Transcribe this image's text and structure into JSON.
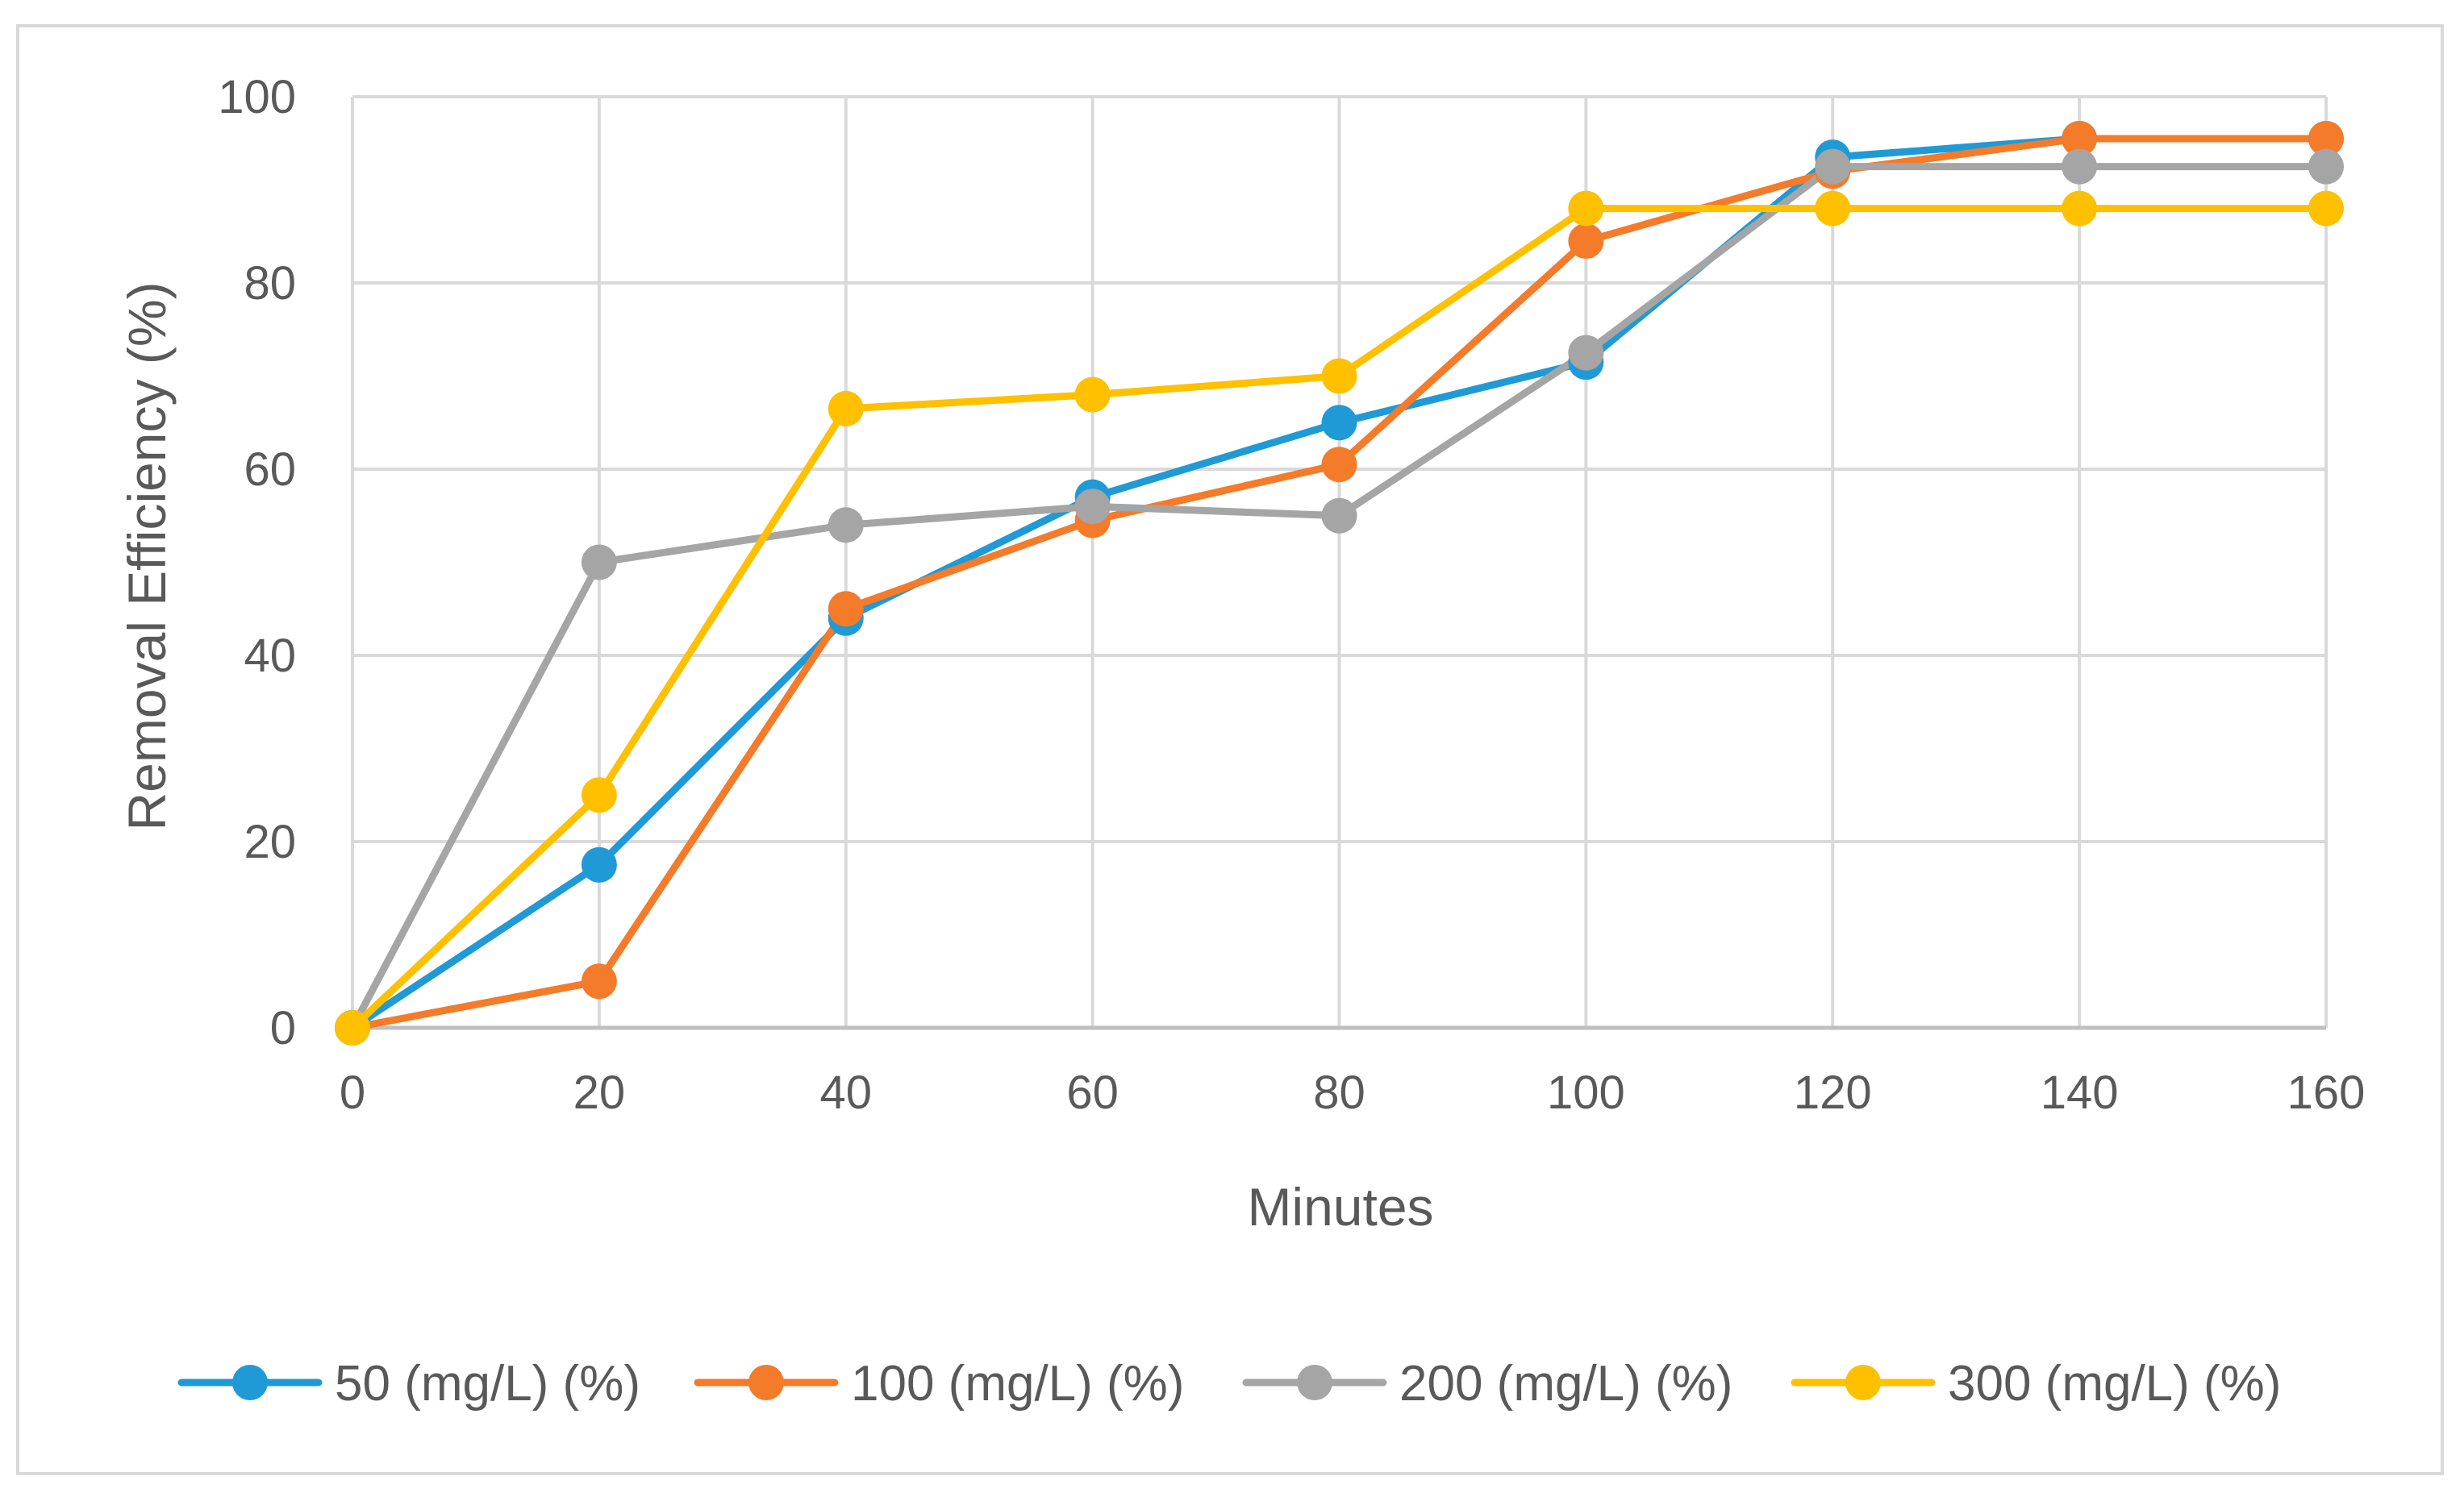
{
  "chart_data": {
    "type": "line",
    "title": "",
    "xlabel": "Minutes",
    "ylabel": "Removal Efficiency (%)",
    "x": [
      0,
      20,
      40,
      60,
      80,
      100,
      120,
      140,
      160
    ],
    "xlim": [
      0,
      160
    ],
    "ylim": [
      0,
      100
    ],
    "xticks": [
      "0",
      "20",
      "40",
      "60",
      "80",
      "100",
      "120",
      "140",
      "160"
    ],
    "yticks": [
      "0",
      "20",
      "40",
      "60",
      "80",
      "100"
    ],
    "grid": true,
    "legend_position": "bottom",
    "series": [
      {
        "name": "50 (mg/L) (%)",
        "color": "#1f9ad6",
        "values": [
          0,
          17.5,
          44,
          57,
          65,
          71.5,
          93.5,
          95.5,
          95.5
        ]
      },
      {
        "name": "100 (mg/L) (%)",
        "color": "#f47b2a",
        "values": [
          0,
          5,
          45,
          54.5,
          60.5,
          84.5,
          92,
          95.5,
          95.5
        ]
      },
      {
        "name": "200 (mg/L) (%)",
        "color": "#a5a5a5",
        "values": [
          0,
          50,
          54,
          56,
          55,
          72.5,
          92.5,
          92.5,
          92.5
        ]
      },
      {
        "name": "300 (mg/L) (%)",
        "color": "#ffc000",
        "values": [
          0,
          25,
          66.5,
          68,
          70,
          88,
          88,
          88,
          88
        ]
      }
    ]
  }
}
